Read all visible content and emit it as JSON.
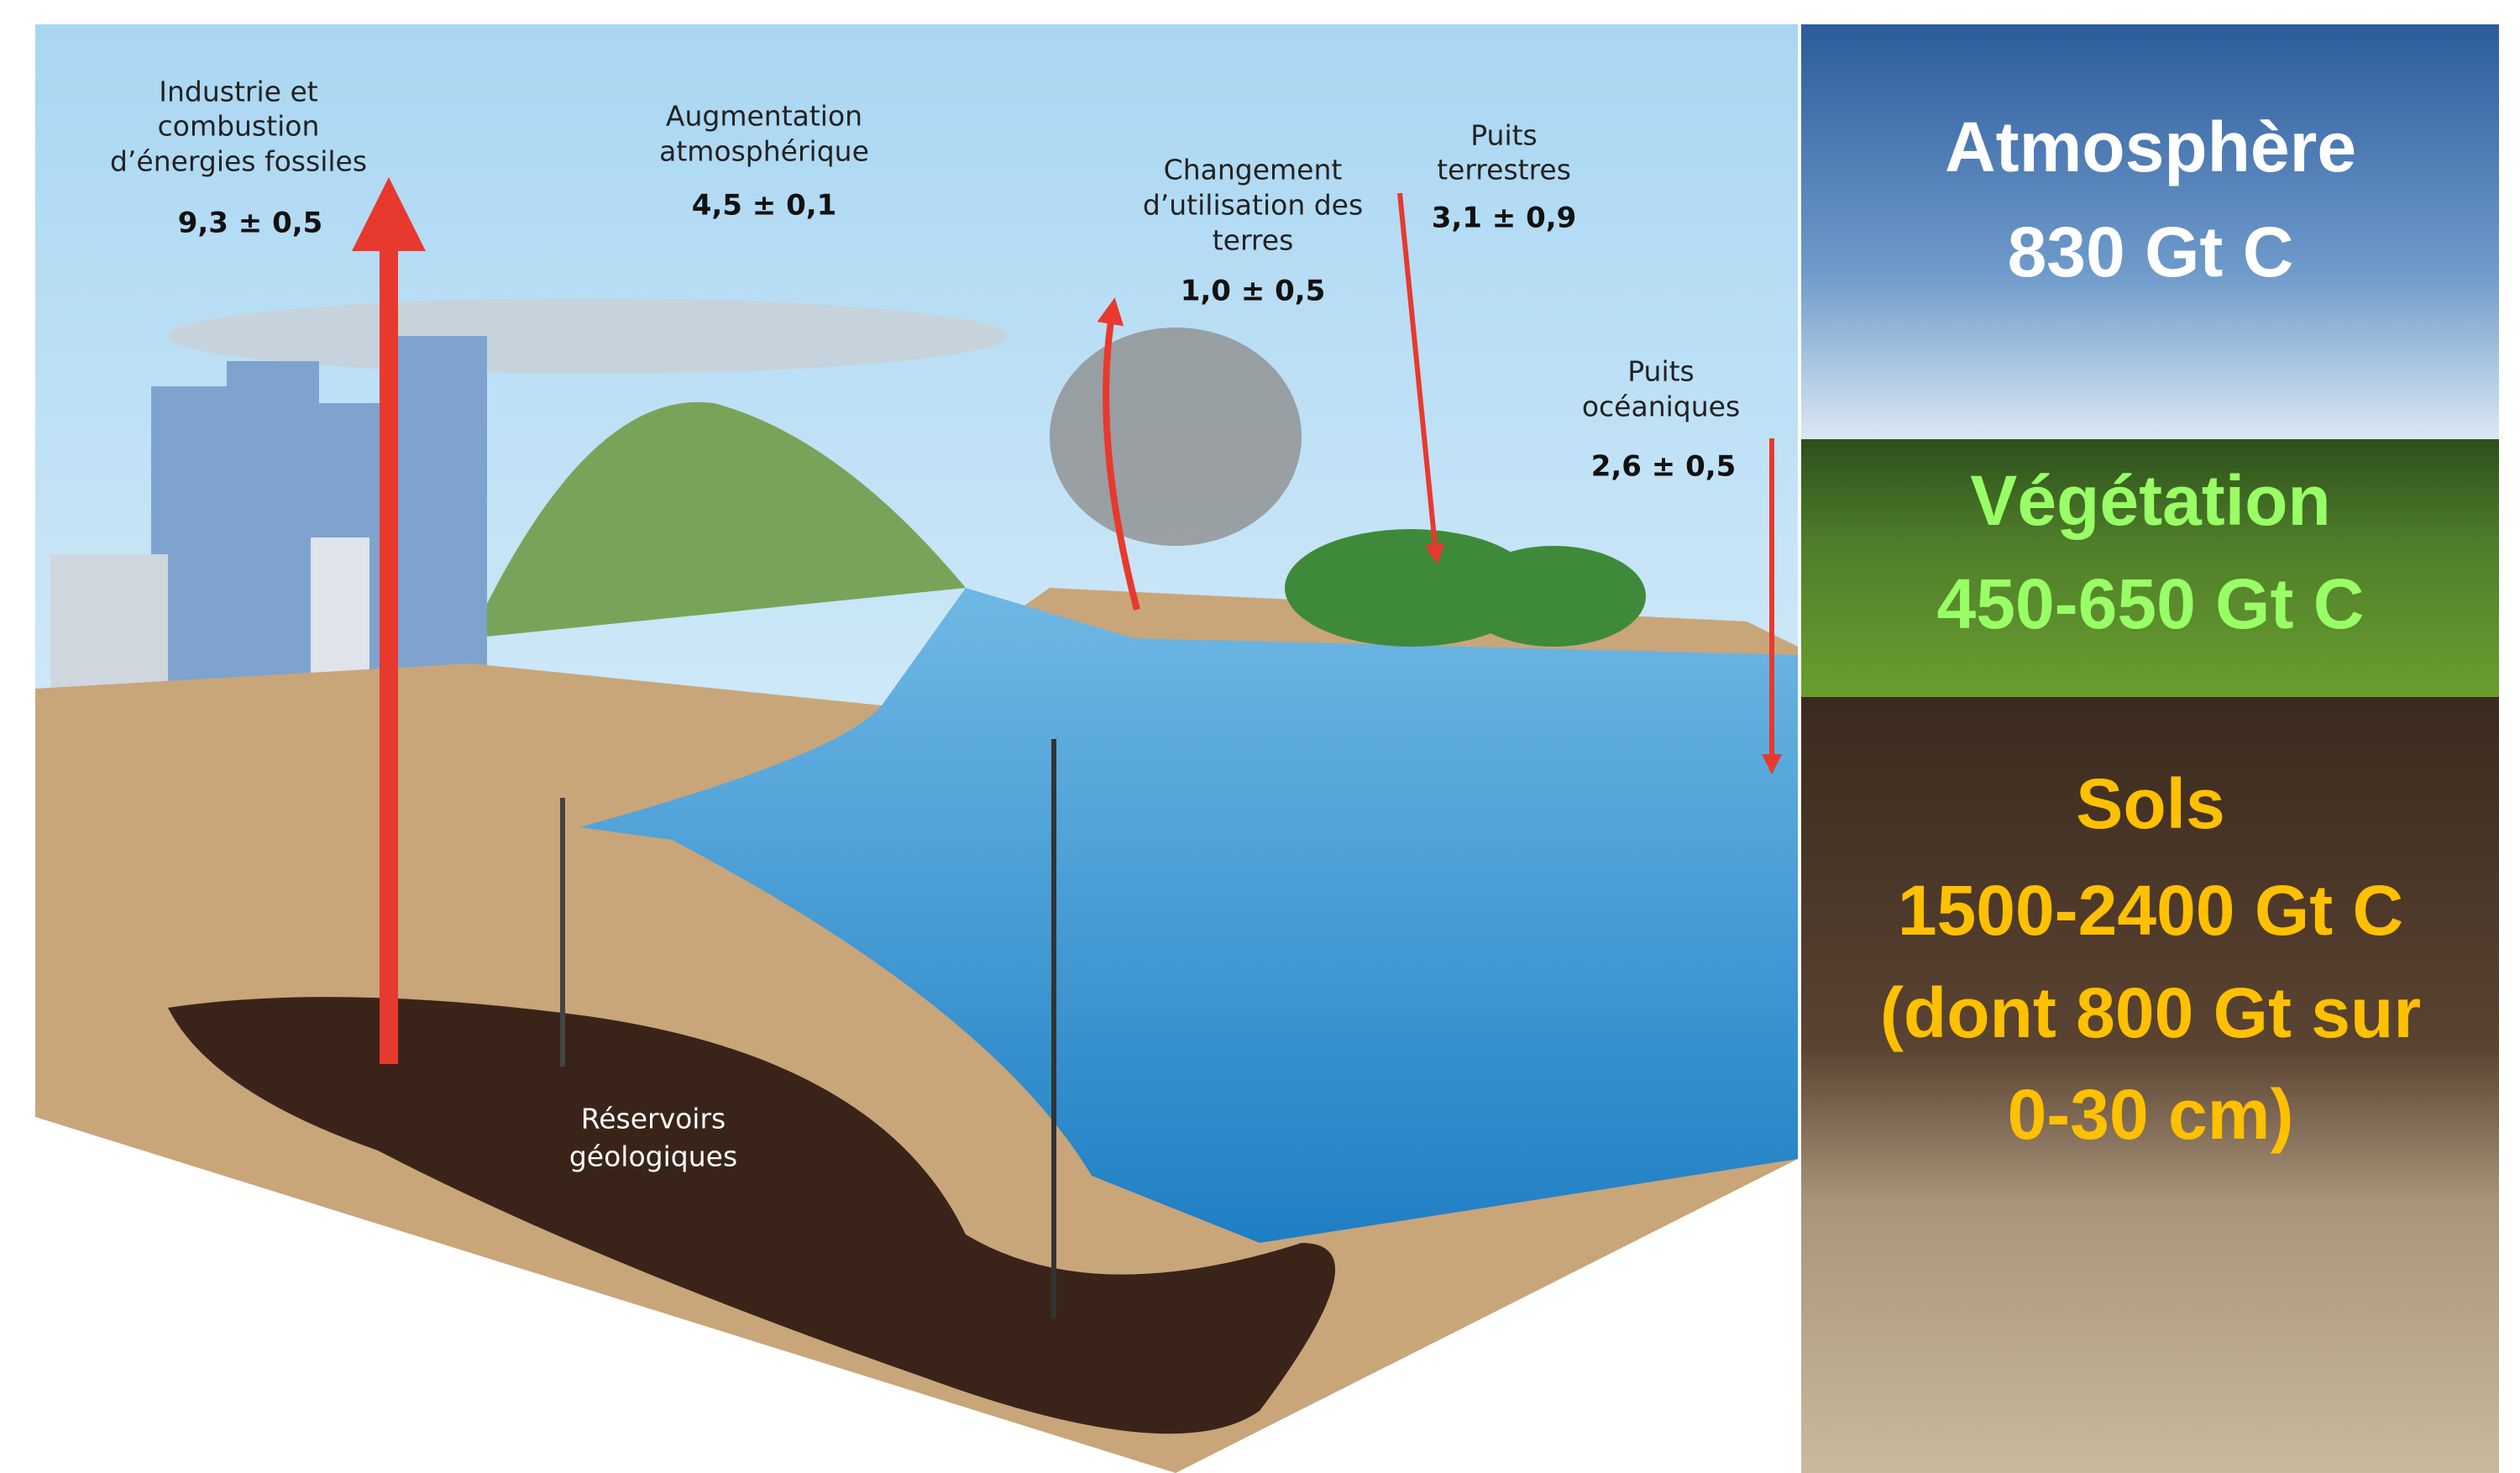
{
  "fluxes": [
    {
      "label": [
        "Industrie et",
        "combustion",
        "d’énergies fossiles"
      ],
      "value": "9,3 ± 0,5"
    },
    {
      "label": [
        "Augmentation",
        "atmosphérique"
      ],
      "value": "4,5 ± 0,1"
    },
    {
      "label": [
        "Changement",
        "d’utilisation des",
        "terres"
      ],
      "value": "1,0 ± 0,5"
    },
    {
      "label": [
        "Puits",
        "terrestres"
      ],
      "value": "3,1 ± 0,9"
    },
    {
      "label": [
        "Puits",
        "océaniques"
      ],
      "value": "2,6 ± 0,5"
    }
  ],
  "geological": [
    "Réservoirs",
    "géologiques"
  ],
  "reservoirs": [
    {
      "lines": [
        "Atmosphère",
        "830 Gt C"
      ]
    },
    {
      "lines": [
        "Végétation",
        "450-650 Gt C"
      ]
    },
    {
      "lines": [
        "Sols",
        "1500-2400 Gt C",
        "(dont 800 Gt sur",
        "0-30 cm)"
      ]
    }
  ]
}
